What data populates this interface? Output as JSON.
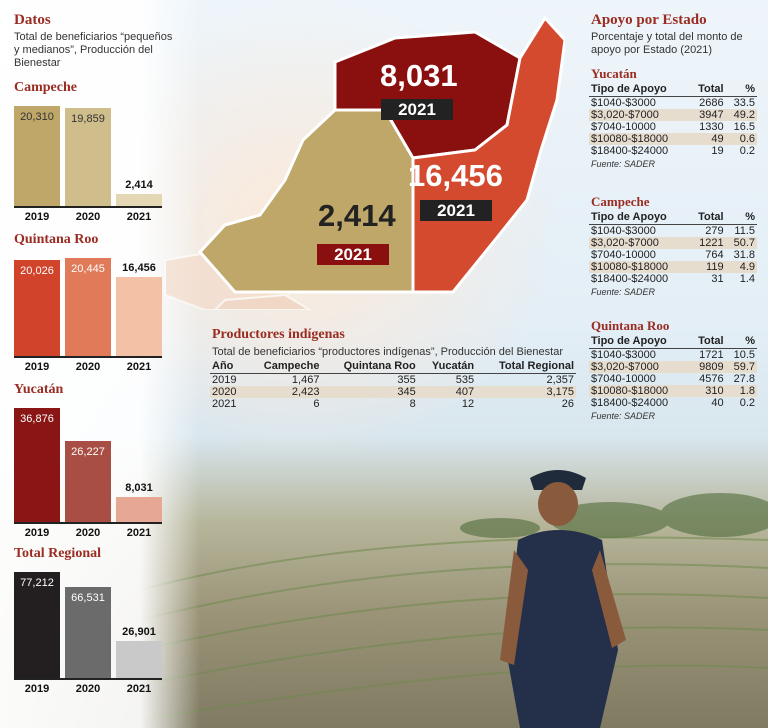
{
  "datos": {
    "title": "Datos",
    "subtitle_lines": [
      "Total de beneficiarios “pequeños",
      "y medianos”, Producción del",
      "Bienestar"
    ]
  },
  "chart_data": [
    {
      "type": "bar",
      "title": "Campeche",
      "categories": [
        "2019",
        "2020",
        "2021"
      ],
      "values": [
        20310,
        19859,
        2414
      ],
      "value_labels": [
        "20,310",
        "19,859",
        "2,414"
      ],
      "colors": [
        "#bfa76a",
        "#cfbd8b",
        "#e3d7b4"
      ]
    },
    {
      "type": "bar",
      "title": "Quintana Roo",
      "categories": [
        "2019",
        "2020",
        "2021"
      ],
      "values": [
        20026,
        20445,
        16456
      ],
      "value_labels": [
        "20,026",
        "20,445",
        "16,456"
      ],
      "colors": [
        "#d2432c",
        "#e07a58",
        "#f2c1a6"
      ]
    },
    {
      "type": "bar",
      "title": "Yucatán",
      "categories": [
        "2019",
        "2020",
        "2021"
      ],
      "values": [
        36876,
        26227,
        8031
      ],
      "value_labels": [
        "36,876",
        "26,227",
        "8,031"
      ],
      "colors": [
        "#8a1515",
        "#a94e44",
        "#e6a894"
      ]
    },
    {
      "type": "bar",
      "title": "Total Regional",
      "categories": [
        "2019",
        "2020",
        "2021"
      ],
      "values": [
        77212,
        66531,
        26901
      ],
      "value_labels": [
        "77,212",
        "66,531",
        "26,901"
      ],
      "colors": [
        "#231f20",
        "#6b6b6b",
        "#c9c9c9"
      ]
    }
  ],
  "map": {
    "yucatan": {
      "value": "8,031",
      "year": "2021",
      "color": "#8a0f0f"
    },
    "quintana_roo": {
      "value": "16,456",
      "year": "2021",
      "color": "#d34a2f"
    },
    "campeche": {
      "value": "2,414",
      "year": "2021",
      "color": "#bfa76a"
    }
  },
  "indigenas": {
    "title": "Productores indígenas",
    "subtitle": "Total de beneficiarios “productores indígenas”, Producción del Bienestar",
    "headers": [
      "Año",
      "Campeche",
      "Quintana Roo",
      "Yucatán",
      "Total Regional"
    ],
    "rows": [
      [
        "2019",
        "1,467",
        "355",
        "535",
        "2,357"
      ],
      [
        "2020",
        "2,423",
        "345",
        "407",
        "3,175"
      ],
      [
        "2021",
        "6",
        "8",
        "12",
        "26"
      ]
    ]
  },
  "apoyo": {
    "title": "Apoyo por Estado",
    "subtitle_lines": [
      "Porcentaje y total del monto de",
      "apoyo por Estado (2021)"
    ],
    "headers": [
      "Tipo de Apoyo",
      "Total",
      "%"
    ],
    "states": [
      {
        "name": "Yucatán",
        "rows": [
          [
            "$1040-$3000",
            "2686",
            "33.5"
          ],
          [
            "$3,020-$7000",
            "3947",
            "49.2"
          ],
          [
            "$7040-10000",
            "1330",
            "16.5"
          ],
          [
            "$10080-$18000",
            "49",
            "0.6"
          ],
          [
            "$18400-$24000",
            "19",
            "0.2"
          ]
        ],
        "source": "Fuente: SADER"
      },
      {
        "name": "Campeche",
        "rows": [
          [
            "$1040-$3000",
            "279",
            "11.5"
          ],
          [
            "$3,020-$7000",
            "1221",
            "50.7"
          ],
          [
            "$7040-10000",
            "764",
            "31.8"
          ],
          [
            "$10080-$18000",
            "119",
            "4.9"
          ],
          [
            "$18400-$24000",
            "31",
            "1.4"
          ]
        ],
        "source": "Fuente: SADER"
      },
      {
        "name": "Quintana Roo",
        "rows": [
          [
            "$1040-$3000",
            "1721",
            "10.5"
          ],
          [
            "$3,020-$7000",
            "9809",
            "59.7"
          ],
          [
            "$7040-10000",
            "4576",
            "27.8"
          ],
          [
            "$10080-$18000",
            "310",
            "1.8"
          ],
          [
            "$18400-$24000",
            "40",
            "0.2"
          ]
        ],
        "source": "Fuente: SADER"
      }
    ]
  }
}
